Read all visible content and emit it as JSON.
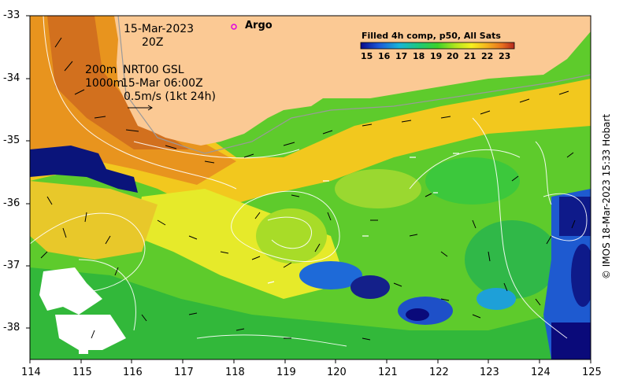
{
  "map": {
    "date": "15-Mar-2023",
    "hour": "20Z",
    "argo_label": "Argo",
    "depth_shallow": "200m",
    "depth_deep": "1000m",
    "product": "NRT00 GSL",
    "product_time": "15-Mar 06:00Z",
    "speed_scale": "0.5m/s (1kt 24h)",
    "colorbar_title": "Filled 4h comp, p50, All Sats",
    "colorbar_ticks": [
      "15",
      "16",
      "17",
      "18",
      "19",
      "20",
      "21",
      "22",
      "23"
    ],
    "x_ticks": [
      "114",
      "115",
      "116",
      "117",
      "118",
      "119",
      "120",
      "121",
      "122",
      "123",
      "124",
      "125"
    ],
    "y_ticks": [
      "-33",
      "-34",
      "-35",
      "-36",
      "-37",
      "-38"
    ],
    "credit": "© IMOS 18-Mar-2023 15:33 Hobart",
    "colors": {
      "land": "#fbc994",
      "cloud": "#ffffff",
      "argo_marker": "#e000e0"
    }
  }
}
